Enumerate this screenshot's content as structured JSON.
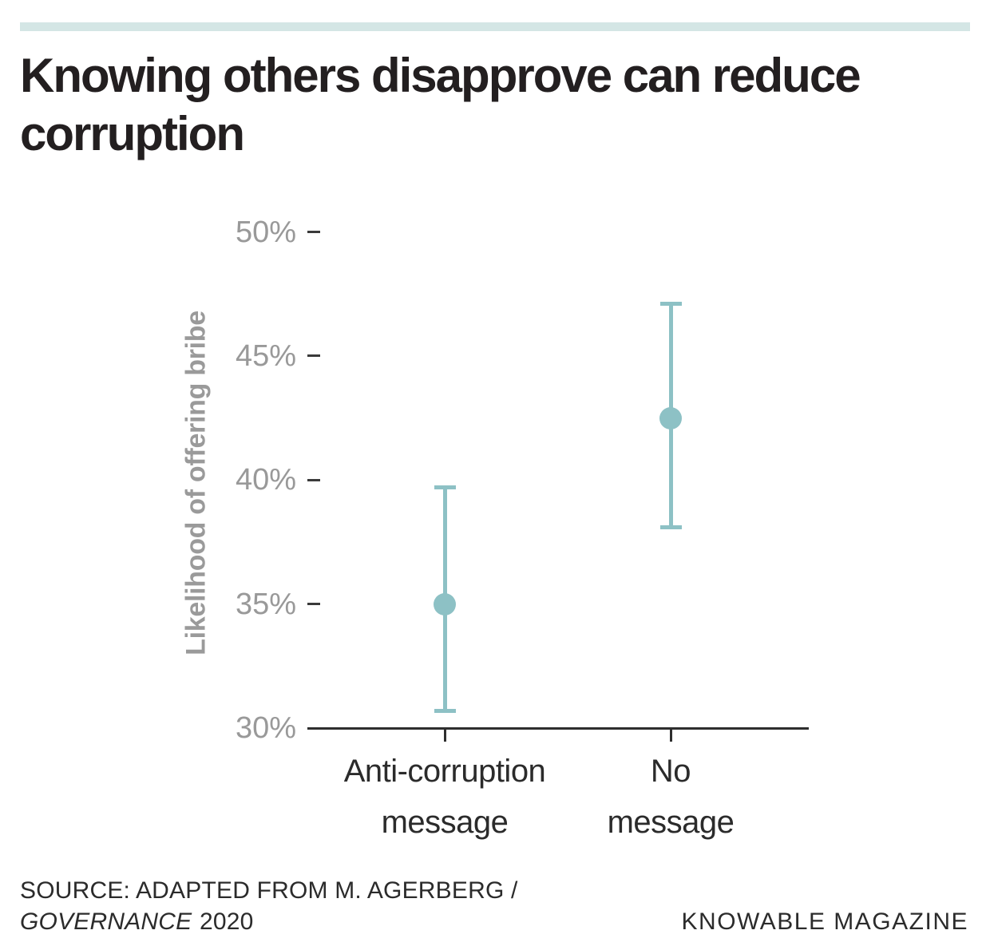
{
  "header": {
    "title": "Knowing others disapprove can reduce corruption",
    "title_lines": [
      "Knowing others disapprove can reduce",
      "corruption"
    ]
  },
  "chart_data": {
    "type": "scatter",
    "subtype": "dot-plot-with-error-bars",
    "title": "Knowing others disapprove can reduce corruption",
    "xlabel": "",
    "ylabel": "Likelihood of offering bribe",
    "ylim": [
      30,
      50
    ],
    "grid": false,
    "legend": false,
    "yticks": [
      {
        "label": "50%",
        "value": 50
      },
      {
        "label": "45%",
        "value": 45
      },
      {
        "label": "40%",
        "value": 40
      },
      {
        "label": "35%",
        "value": 35
      },
      {
        "label": "30%",
        "value": 30
      }
    ],
    "categories": [
      "Anti-corruption message",
      "No message"
    ],
    "category_lines": [
      [
        "Anti-corruption",
        "message"
      ],
      [
        "No",
        "message"
      ]
    ],
    "series": [
      {
        "name": "Anti-corruption message",
        "value": 35.0,
        "ci_low": 30.7,
        "ci_high": 39.7
      },
      {
        "name": "No message",
        "value": 42.5,
        "ci_low": 38.1,
        "ci_high": 47.1
      }
    ]
  },
  "footer": {
    "source_line1": "SOURCE: ADAPTED FROM M. AGERBERG /",
    "source_journal": "GOVERNANCE",
    "source_year": "2020",
    "brand": "KNOWABLE MAGAZINE"
  },
  "colors": {
    "accent_bar": "#d4e6e5",
    "point": "#8dc1c5",
    "axis": "#2e2e2e",
    "tick_label": "#999999",
    "dark_text": "#2b2b2b",
    "title_text": "#231f20",
    "y_axis_title": "#9a9a9a"
  }
}
